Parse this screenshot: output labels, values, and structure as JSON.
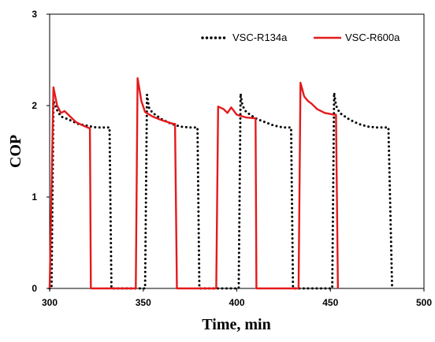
{
  "chart_data": {
    "type": "line",
    "xlabel": "Time, min",
    "ylabel": "COP",
    "xlim": [
      300,
      500
    ],
    "ylim": [
      0,
      3
    ],
    "x_ticks": [
      300,
      350,
      400,
      450,
      500
    ],
    "y_ticks": [
      0,
      1,
      2,
      3
    ],
    "grid": false,
    "legend_position": "top-right",
    "series": [
      {
        "name": "VSC-R134a",
        "color": "#000000",
        "style": "dotted",
        "points": [
          [
            300,
            0
          ],
          [
            301,
            0
          ],
          [
            302,
            2.05
          ],
          [
            304,
            1.95
          ],
          [
            306,
            1.88
          ],
          [
            310,
            1.85
          ],
          [
            315,
            1.8
          ],
          [
            320,
            1.78
          ],
          [
            325,
            1.76
          ],
          [
            330,
            1.76
          ],
          [
            332,
            1.76
          ],
          [
            333,
            0
          ],
          [
            350,
            0
          ],
          [
            351,
            0
          ],
          [
            352,
            2.12
          ],
          [
            353,
            1.98
          ],
          [
            355,
            1.92
          ],
          [
            360,
            1.85
          ],
          [
            365,
            1.8
          ],
          [
            370,
            1.77
          ],
          [
            375,
            1.76
          ],
          [
            379,
            1.76
          ],
          [
            380,
            0
          ],
          [
            400,
            0
          ],
          [
            401,
            0
          ],
          [
            402,
            2.13
          ],
          [
            403,
            2.0
          ],
          [
            405,
            1.93
          ],
          [
            410,
            1.86
          ],
          [
            415,
            1.82
          ],
          [
            420,
            1.78
          ],
          [
            425,
            1.76
          ],
          [
            429,
            1.76
          ],
          [
            430,
            0
          ],
          [
            450,
            0
          ],
          [
            451,
            0
          ],
          [
            452,
            2.14
          ],
          [
            453,
            2.0
          ],
          [
            455,
            1.92
          ],
          [
            460,
            1.85
          ],
          [
            465,
            1.8
          ],
          [
            470,
            1.77
          ],
          [
            475,
            1.76
          ],
          [
            481,
            1.76
          ],
          [
            483,
            0
          ]
        ]
      },
      {
        "name": "VSC-R600a",
        "color": "#e41a1c",
        "style": "solid",
        "points": [
          [
            300,
            0
          ],
          [
            302,
            2.2
          ],
          [
            304,
            2.0
          ],
          [
            306,
            1.92
          ],
          [
            308,
            1.94
          ],
          [
            310,
            1.9
          ],
          [
            314,
            1.82
          ],
          [
            318,
            1.78
          ],
          [
            321.5,
            1.75
          ],
          [
            322,
            0
          ],
          [
            346,
            0
          ],
          [
            347,
            2.3
          ],
          [
            349,
            2.05
          ],
          [
            351,
            1.93
          ],
          [
            355,
            1.88
          ],
          [
            360,
            1.84
          ],
          [
            366,
            1.8
          ],
          [
            367,
            1.8
          ],
          [
            368,
            0
          ],
          [
            389,
            0
          ],
          [
            390,
            1.99
          ],
          [
            393,
            1.96
          ],
          [
            395,
            1.92
          ],
          [
            397,
            1.98
          ],
          [
            400,
            1.9
          ],
          [
            405,
            1.87
          ],
          [
            410,
            1.86
          ],
          [
            410.5,
            0
          ],
          [
            433,
            0
          ],
          [
            434,
            2.25
          ],
          [
            436,
            2.1
          ],
          [
            438,
            2.05
          ],
          [
            440,
            2.02
          ],
          [
            443,
            1.96
          ],
          [
            447,
            1.92
          ],
          [
            452,
            1.9
          ],
          [
            453,
            1.9
          ],
          [
            454,
            0
          ]
        ]
      }
    ]
  }
}
